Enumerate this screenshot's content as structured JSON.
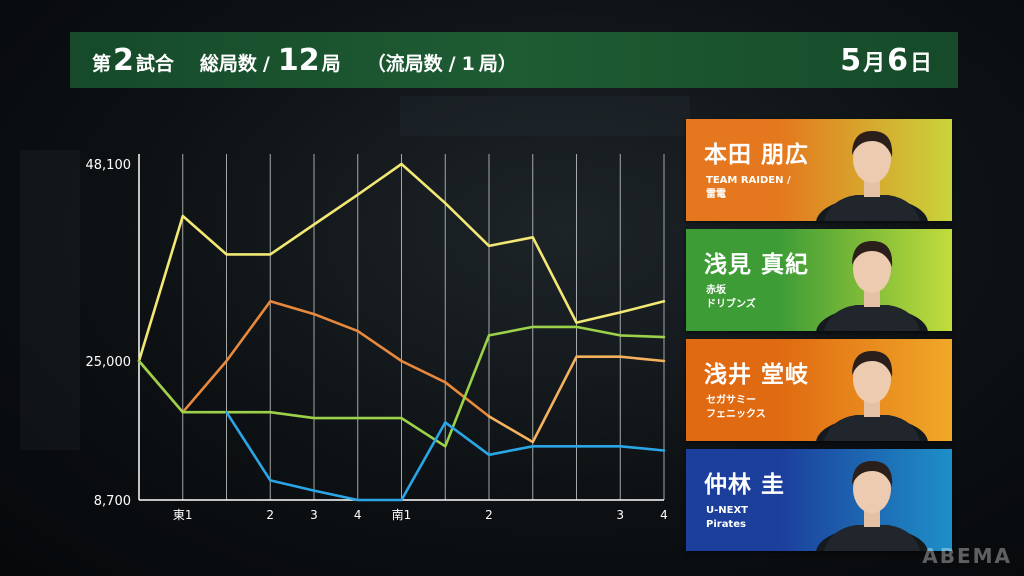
{
  "header": {
    "game_prefix": "第",
    "game_number": "2",
    "game_suffix": "試合",
    "total_label": "総局数",
    "slash1": "/",
    "total_number": "12",
    "total_unit": "局",
    "draw_open": "（流局数",
    "slash2": "/",
    "draw_number": "1",
    "draw_close": "局）",
    "month": "5",
    "month_unit": "月",
    "day": "6",
    "day_unit": "日"
  },
  "colors": {
    "honda": "#f2e873",
    "asami": "#e8893c",
    "asai": "#9bd24a",
    "nakabayashi": "#2aa6e6",
    "asai_late": "#f5b25e"
  },
  "chart_data": {
    "type": "line",
    "ylim": [
      8700,
      48100
    ],
    "yticks": [
      {
        "value": 48100,
        "label": "48,100"
      },
      {
        "value": 25000,
        "label": "25,000"
      },
      {
        "value": 8700,
        "label": "8,700"
      }
    ],
    "x": [
      0,
      1,
      2,
      3,
      4,
      5,
      6,
      7,
      8,
      9,
      10,
      11,
      12
    ],
    "xtick_labels": [
      "",
      "東1",
      "",
      "2",
      "3",
      "4",
      "南1",
      "",
      "2",
      "",
      "",
      "3",
      "4"
    ],
    "grid": "vertical",
    "series": [
      {
        "color": "#f2e873",
        "values": [
          25000,
          42000,
          37500,
          37500,
          41000,
          44500,
          48100,
          43500,
          38500,
          39500,
          29500,
          30700,
          32000
        ]
      },
      {
        "color": "#e8893c",
        "values": [
          25000,
          19000,
          25000,
          32000,
          30500,
          28500,
          25000,
          22500,
          18500,
          null,
          null,
          null,
          null
        ]
      },
      {
        "color": "#f5b25e",
        "values": [
          null,
          null,
          null,
          null,
          null,
          null,
          null,
          null,
          18500,
          15500,
          25500,
          25500,
          25000
        ]
      },
      {
        "color": "#9bd24a",
        "values": [
          25000,
          19000,
          19000,
          19000,
          18300,
          18300,
          18300,
          15000,
          28000,
          29000,
          29000,
          28000,
          27800
        ]
      },
      {
        "color": "#2aa6e6",
        "values": [
          null,
          null,
          19000,
          11000,
          9800,
          8700,
          8700,
          17800,
          14000,
          15000,
          15000,
          15000,
          14500
        ]
      }
    ]
  },
  "players": [
    {
      "name": "本田 朋広",
      "team": "TEAM RAIDEN /\n雷電",
      "bg1": "#e5781e",
      "bg2": "#c9d43c"
    },
    {
      "name": "浅見 真紀",
      "team": "赤坂\nドリブンズ",
      "bg1": "#3e9c36",
      "bg2": "#c2dc3c"
    },
    {
      "name": "浅井 堂岐",
      "team": "セガサミー\nフェニックス",
      "bg1": "#e06a12",
      "bg2": "#f0a828"
    },
    {
      "name": "仲林 圭",
      "team": "U-NEXT\nPirates",
      "bg1": "#1c3f9c",
      "bg2": "#1e8fc8"
    }
  ],
  "watermark": "ABEMA"
}
